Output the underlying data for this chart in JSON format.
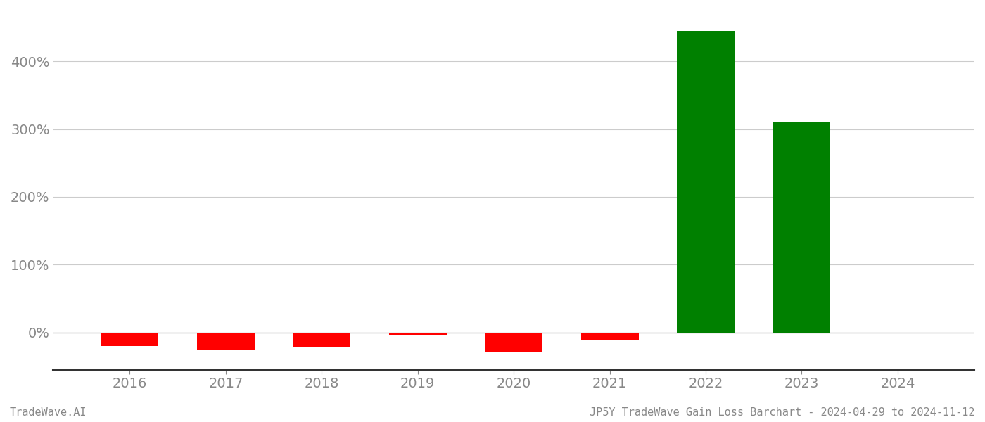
{
  "years": [
    2016,
    2017,
    2018,
    2019,
    2020,
    2021,
    2022,
    2023,
    2024
  ],
  "values": [
    -20.0,
    -25.0,
    -22.0,
    -5.0,
    -30.0,
    -12.0,
    445.0,
    310.0,
    0.0
  ],
  "colors": [
    "#ff0000",
    "#ff0000",
    "#ff0000",
    "#ff0000",
    "#ff0000",
    "#ff0000",
    "#008000",
    "#008000",
    "#ff0000"
  ],
  "ylim": [
    -55,
    475
  ],
  "yticks": [
    0,
    100,
    200,
    300,
    400
  ],
  "ytick_labels": [
    "0%",
    "100%",
    "200%",
    "300%",
    "400%"
  ],
  "background_color": "#ffffff",
  "bar_width": 0.6,
  "grid_color": "#cccccc",
  "grid_linewidth": 0.8,
  "axis_color": "#333333",
  "tick_color": "#888888",
  "footer_left": "TradeWave.AI",
  "footer_right": "JP5Y TradeWave Gain Loss Barchart - 2024-04-29 to 2024-11-12",
  "footer_fontsize": 11,
  "tick_fontsize": 14,
  "xlim_left": 2015.2,
  "xlim_right": 2024.8
}
